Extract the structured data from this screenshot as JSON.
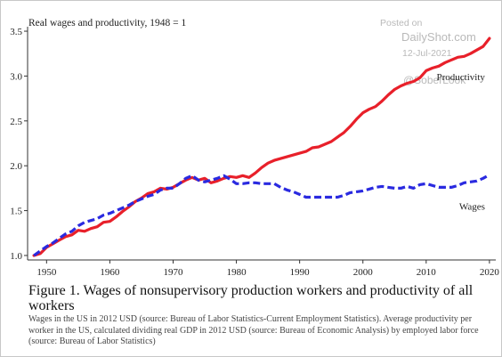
{
  "chart_data": {
    "type": "line",
    "title": "",
    "ylabel": "Real wages and productivity, 1948 = 1",
    "xlabel": "",
    "xlim": [
      1947,
      2021
    ],
    "ylim": [
      0.95,
      3.55
    ],
    "x_ticks": [
      1950,
      1960,
      1970,
      1980,
      1990,
      2000,
      2010,
      2020
    ],
    "y_ticks": [
      1.0,
      1.5,
      2.0,
      2.5,
      3.0,
      3.5
    ],
    "y_tick_labels": [
      "1.0",
      "1.5",
      "2.0",
      "2.5",
      "3.0",
      "3.5"
    ],
    "grid": false,
    "series": [
      {
        "name": "Productivity",
        "color": "#e8202a",
        "style": "solid",
        "points": [
          [
            1948,
            1.0
          ],
          [
            1949,
            1.02
          ],
          [
            1950,
            1.09
          ],
          [
            1951,
            1.13
          ],
          [
            1952,
            1.17
          ],
          [
            1953,
            1.21
          ],
          [
            1954,
            1.23
          ],
          [
            1955,
            1.28
          ],
          [
            1956,
            1.27
          ],
          [
            1957,
            1.3
          ],
          [
            1958,
            1.32
          ],
          [
            1959,
            1.37
          ],
          [
            1960,
            1.38
          ],
          [
            1961,
            1.43
          ],
          [
            1962,
            1.49
          ],
          [
            1963,
            1.54
          ],
          [
            1964,
            1.6
          ],
          [
            1965,
            1.64
          ],
          [
            1966,
            1.69
          ],
          [
            1967,
            1.71
          ],
          [
            1968,
            1.75
          ],
          [
            1969,
            1.74
          ],
          [
            1970,
            1.76
          ],
          [
            1971,
            1.8
          ],
          [
            1972,
            1.84
          ],
          [
            1973,
            1.87
          ],
          [
            1974,
            1.84
          ],
          [
            1975,
            1.86
          ],
          [
            1976,
            1.81
          ],
          [
            1977,
            1.83
          ],
          [
            1978,
            1.86
          ],
          [
            1979,
            1.88
          ],
          [
            1980,
            1.87
          ],
          [
            1981,
            1.89
          ],
          [
            1982,
            1.87
          ],
          [
            1983,
            1.92
          ],
          [
            1984,
            1.98
          ],
          [
            1985,
            2.03
          ],
          [
            1986,
            2.06
          ],
          [
            1987,
            2.08
          ],
          [
            1988,
            2.1
          ],
          [
            1989,
            2.12
          ],
          [
            1990,
            2.14
          ],
          [
            1991,
            2.16
          ],
          [
            1992,
            2.2
          ],
          [
            1993,
            2.21
          ],
          [
            1994,
            2.24
          ],
          [
            1995,
            2.27
          ],
          [
            1996,
            2.32
          ],
          [
            1997,
            2.37
          ],
          [
            1998,
            2.44
          ],
          [
            1999,
            2.52
          ],
          [
            2000,
            2.59
          ],
          [
            2001,
            2.63
          ],
          [
            2002,
            2.66
          ],
          [
            2003,
            2.72
          ],
          [
            2004,
            2.79
          ],
          [
            2005,
            2.85
          ],
          [
            2006,
            2.89
          ],
          [
            2007,
            2.92
          ],
          [
            2008,
            2.94
          ],
          [
            2009,
            2.98
          ],
          [
            2010,
            3.06
          ],
          [
            2011,
            3.09
          ],
          [
            2012,
            3.11
          ],
          [
            2013,
            3.15
          ],
          [
            2014,
            3.18
          ],
          [
            2015,
            3.21
          ],
          [
            2016,
            3.22
          ],
          [
            2017,
            3.25
          ],
          [
            2018,
            3.29
          ],
          [
            2019,
            3.33
          ],
          [
            2020,
            3.42
          ]
        ]
      },
      {
        "name": "Wages",
        "color": "#2a2ae0",
        "style": "dashed",
        "points": [
          [
            1948,
            1.0
          ],
          [
            1949,
            1.05
          ],
          [
            1950,
            1.1
          ],
          [
            1951,
            1.14
          ],
          [
            1952,
            1.19
          ],
          [
            1953,
            1.24
          ],
          [
            1954,
            1.27
          ],
          [
            1955,
            1.33
          ],
          [
            1956,
            1.37
          ],
          [
            1957,
            1.39
          ],
          [
            1958,
            1.41
          ],
          [
            1959,
            1.45
          ],
          [
            1960,
            1.47
          ],
          [
            1961,
            1.5
          ],
          [
            1962,
            1.53
          ],
          [
            1963,
            1.56
          ],
          [
            1964,
            1.6
          ],
          [
            1965,
            1.63
          ],
          [
            1966,
            1.66
          ],
          [
            1967,
            1.68
          ],
          [
            1968,
            1.73
          ],
          [
            1969,
            1.75
          ],
          [
            1970,
            1.75
          ],
          [
            1971,
            1.8
          ],
          [
            1972,
            1.86
          ],
          [
            1973,
            1.89
          ],
          [
            1974,
            1.84
          ],
          [
            1975,
            1.82
          ],
          [
            1976,
            1.84
          ],
          [
            1977,
            1.86
          ],
          [
            1978,
            1.89
          ],
          [
            1979,
            1.85
          ],
          [
            1980,
            1.8
          ],
          [
            1981,
            1.8
          ],
          [
            1982,
            1.81
          ],
          [
            1983,
            1.81
          ],
          [
            1984,
            1.8
          ],
          [
            1985,
            1.8
          ],
          [
            1986,
            1.8
          ],
          [
            1987,
            1.76
          ],
          [
            1988,
            1.73
          ],
          [
            1989,
            1.71
          ],
          [
            1990,
            1.68
          ],
          [
            1991,
            1.65
          ],
          [
            1992,
            1.65
          ],
          [
            1993,
            1.65
          ],
          [
            1994,
            1.65
          ],
          [
            1995,
            1.65
          ],
          [
            1996,
            1.65
          ],
          [
            1997,
            1.67
          ],
          [
            1998,
            1.7
          ],
          [
            1999,
            1.71
          ],
          [
            2000,
            1.72
          ],
          [
            2001,
            1.74
          ],
          [
            2002,
            1.76
          ],
          [
            2003,
            1.77
          ],
          [
            2004,
            1.76
          ],
          [
            2005,
            1.75
          ],
          [
            2006,
            1.75
          ],
          [
            2007,
            1.77
          ],
          [
            2008,
            1.75
          ],
          [
            2009,
            1.79
          ],
          [
            2010,
            1.8
          ],
          [
            2011,
            1.78
          ],
          [
            2012,
            1.76
          ],
          [
            2013,
            1.76
          ],
          [
            2014,
            1.76
          ],
          [
            2015,
            1.78
          ],
          [
            2016,
            1.81
          ],
          [
            2017,
            1.82
          ],
          [
            2018,
            1.83
          ],
          [
            2019,
            1.86
          ],
          [
            2020,
            1.9
          ]
        ]
      }
    ]
  },
  "caption": {
    "title": "Figure 1. Wages of nonsupervisory production workers and productivity of all workers",
    "note": "Wages in the US in 2012 USD (source: Bureau of Labor Statistics-Current Employment Statistics). Average productivity per worker in the US, calculated dividing real GDP in 2012 USD (source: Bureau of Economic Analysis) by employed labor force (source: Bureau of Labor Statistics)"
  },
  "watermark": {
    "posted": "Posted on",
    "site": "DailyShot.com",
    "date": "12-Jul-2021",
    "handle": "@SoberLook"
  }
}
